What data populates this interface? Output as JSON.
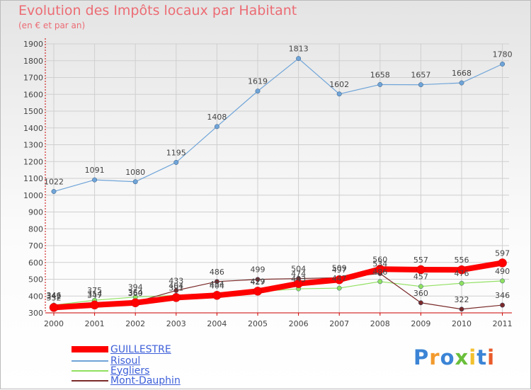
{
  "title": "Evolution des Impôts locaux par Habitant",
  "subtitle": "(en € et par an)",
  "logo": "Proxiti",
  "colors": {
    "title": "#ec6c74",
    "axis": "#cc0000",
    "grid": "#cfcfcf",
    "legend_text": "#3d5fd9"
  },
  "chart_data": {
    "type": "line",
    "title": "Evolution des Impôts locaux par Habitant",
    "subtitle": "(en € et par an)",
    "xlabel": "",
    "ylabel": "",
    "ylim": [
      300,
      1900
    ],
    "y_ticks": [
      300,
      400,
      500,
      600,
      700,
      800,
      900,
      1000,
      1100,
      1200,
      1300,
      1400,
      1500,
      1600,
      1700,
      1800,
      1900
    ],
    "grid": true,
    "legend_position": "bottom-left",
    "x": [
      "2000",
      "2001",
      "2002",
      "2003",
      "2004",
      "2005",
      "2006",
      "2007",
      "2008",
      "2009",
      "2010",
      "2011"
    ],
    "series": [
      {
        "name": "GUILLESTRE",
        "color": "#ff0000",
        "thick": true,
        "values": [
          332,
          347,
          360,
          391,
          404,
          429,
          474,
          497,
          560,
          557,
          556,
          597
        ]
      },
      {
        "name": "Risoul",
        "color": "#6fa4d8",
        "thick": false,
        "values": [
          1022,
          1091,
          1080,
          1195,
          1408,
          1619,
          1813,
          1602,
          1658,
          1657,
          1668,
          1780
        ]
      },
      {
        "name": "Eygliers",
        "color": "#90e060",
        "thick": false,
        "values": [
          346,
          375,
          394,
          404,
          414,
          427,
          443,
          447,
          486,
          457,
          476,
          490
        ]
      },
      {
        "name": "Mont-Dauphin",
        "color": "#7a2a2a",
        "thick": false,
        "values": [
          342,
          354,
          364,
          433,
          486,
          499,
          504,
          509,
          534,
          360,
          322,
          346
        ]
      }
    ]
  }
}
